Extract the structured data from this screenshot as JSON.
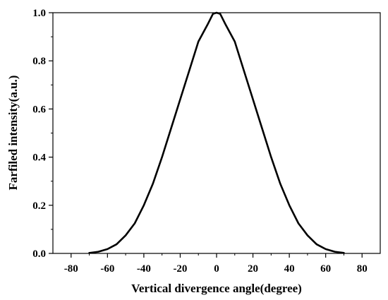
{
  "chart_data": {
    "type": "line",
    "title": "",
    "xlabel": "Vertical divergence angle(degree)",
    "ylabel": "Farfiled intensity(a.u.)",
    "xlim": [
      -90,
      90
    ],
    "ylim": [
      0,
      1.0
    ],
    "x_ticks": [
      -80,
      -60,
      -40,
      -20,
      0,
      20,
      40,
      60,
      80
    ],
    "y_ticks": [
      0.0,
      0.2,
      0.4,
      0.6,
      0.8,
      1.0
    ],
    "x_tick_labels": [
      "-80",
      "-60",
      "-40",
      "-20",
      "0",
      "20",
      "40",
      "60",
      "80"
    ],
    "y_tick_labels": [
      "0.0",
      "0.2",
      "0.4",
      "0.6",
      "0.8",
      "1.0"
    ],
    "grid": false,
    "series": [
      {
        "color": "#000000",
        "x": [
          -70,
          -65,
          -60,
          -55,
          -50,
          -45,
          -40,
          -35,
          -30,
          -25,
          -20,
          -15,
          -10,
          -5,
          -2,
          0,
          2,
          5,
          10,
          15,
          20,
          25,
          30,
          35,
          40,
          45,
          50,
          55,
          60,
          65,
          70
        ],
        "y": [
          0.002,
          0.007,
          0.018,
          0.038,
          0.075,
          0.125,
          0.2,
          0.29,
          0.4,
          0.52,
          0.64,
          0.76,
          0.88,
          0.95,
          0.995,
          1.0,
          0.995,
          0.95,
          0.88,
          0.76,
          0.64,
          0.52,
          0.4,
          0.29,
          0.2,
          0.125,
          0.075,
          0.038,
          0.018,
          0.007,
          0.002
        ]
      }
    ]
  }
}
